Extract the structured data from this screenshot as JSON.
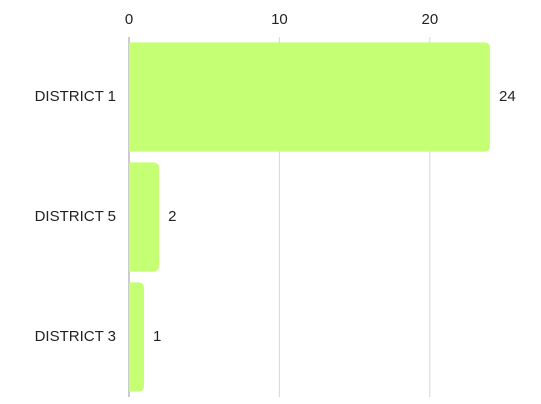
{
  "chart_data": {
    "type": "bar",
    "orientation": "horizontal",
    "categories": [
      "DISTRICT 1",
      "DISTRICT 5",
      "DISTRICT 3"
    ],
    "values": [
      24,
      2,
      1
    ],
    "color": "#c5ff73",
    "xlim": [
      0,
      24
    ],
    "xticks": [
      0,
      10,
      20
    ],
    "grid": true
  }
}
